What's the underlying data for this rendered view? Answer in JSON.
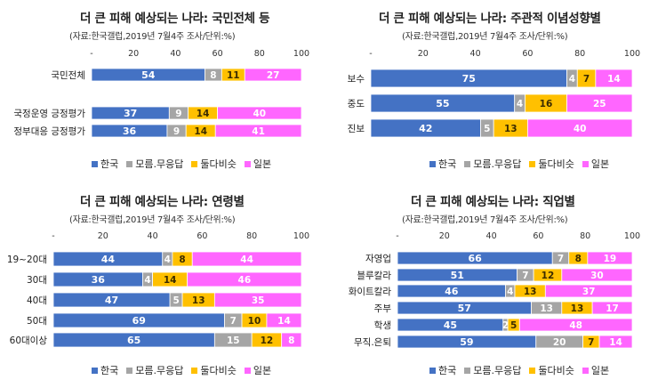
{
  "legend": [
    "한국",
    "모름.무응답",
    "둘다비슷",
    "일본"
  ],
  "colors": {
    "korea": "#4472C4",
    "unknown": "#A5A5A5",
    "similar": "#FFC000",
    "japan": "#FF66FF"
  },
  "chart_data": [
    {
      "type": "bar",
      "stacked": true,
      "orientation": "horizontal",
      "title": "더 큰 피해 예상되는 나라: 국민전체 등",
      "subtitle": "(자료:한국갤럽,2019년 7월4주 조사/단위:%)",
      "xlim": [
        0,
        100
      ],
      "xticks": [
        "-",
        "20",
        "40",
        "60",
        "80",
        "100"
      ],
      "categories": [
        "국민전체",
        "국정운영 긍정평가",
        "정부대응 긍정평가"
      ],
      "series": [
        {
          "name": "한국",
          "values": [
            54,
            37,
            36
          ]
        },
        {
          "name": "모름.무응답",
          "values": [
            8,
            9,
            9
          ]
        },
        {
          "name": "둘다비슷",
          "values": [
            11,
            14,
            14
          ]
        },
        {
          "name": "일본",
          "values": [
            27,
            40,
            41
          ]
        }
      ],
      "legend": "bottom"
    },
    {
      "type": "bar",
      "stacked": true,
      "orientation": "horizontal",
      "title": "더 큰 피해 예상되는 나라: 주관적 이념성향별",
      "subtitle": "(자료:한국갤럽,2019년 7월4주 조사/단위:%)",
      "xlim": [
        0,
        100
      ],
      "xticks": [
        "-",
        "20",
        "40",
        "60",
        "80",
        "100"
      ],
      "categories": [
        "보수",
        "중도",
        "진보"
      ],
      "series": [
        {
          "name": "한국",
          "values": [
            75,
            55,
            42
          ]
        },
        {
          "name": "모름.무응답",
          "values": [
            4,
            4,
            5
          ]
        },
        {
          "name": "둘다비슷",
          "values": [
            7,
            16,
            13
          ]
        },
        {
          "name": "일본",
          "values": [
            14,
            25,
            40
          ]
        }
      ],
      "legend": "bottom"
    },
    {
      "type": "bar",
      "stacked": true,
      "orientation": "horizontal",
      "title": "더 큰 피해 예상되는 나라: 연령별",
      "subtitle": "(자료:한국갤럽,2019년 7월4주 조사/단위:%)",
      "xlim": [
        0,
        100
      ],
      "xticks": [
        "-",
        "20",
        "40",
        "60",
        "80",
        "100"
      ],
      "categories": [
        "19~20대",
        "30대",
        "40대",
        "50대",
        "60대이상"
      ],
      "series": [
        {
          "name": "한국",
          "values": [
            44,
            36,
            47,
            69,
            65
          ]
        },
        {
          "name": "모름.무응답",
          "values": [
            4,
            4,
            5,
            7,
            15
          ]
        },
        {
          "name": "둘다비슷",
          "values": [
            8,
            14,
            13,
            10,
            12
          ]
        },
        {
          "name": "일본",
          "values": [
            44,
            46,
            35,
            14,
            8
          ]
        }
      ],
      "legend": "bottom"
    },
    {
      "type": "bar",
      "stacked": true,
      "orientation": "horizontal",
      "title": "더 큰 피해 예상되는 나라: 직업별",
      "subtitle": "(자료:한국갤럽,2019년 7월4주 조사/단위:%)",
      "xlim": [
        0,
        100
      ],
      "xticks": [
        "-",
        "20",
        "40",
        "60",
        "80",
        "100"
      ],
      "categories": [
        "자영업",
        "블루칼라",
        "화이트칼라",
        "주부",
        "학생",
        "무직.은퇴"
      ],
      "series": [
        {
          "name": "한국",
          "values": [
            66,
            51,
            46,
            57,
            45,
            59
          ]
        },
        {
          "name": "모름.무응답",
          "values": [
            7,
            7,
            4,
            13,
            2,
            20
          ]
        },
        {
          "name": "둘다비슷",
          "values": [
            8,
            12,
            13,
            13,
            5,
            7
          ]
        },
        {
          "name": "일본",
          "values": [
            19,
            30,
            37,
            17,
            48,
            14
          ]
        }
      ],
      "legend": "bottom"
    }
  ]
}
